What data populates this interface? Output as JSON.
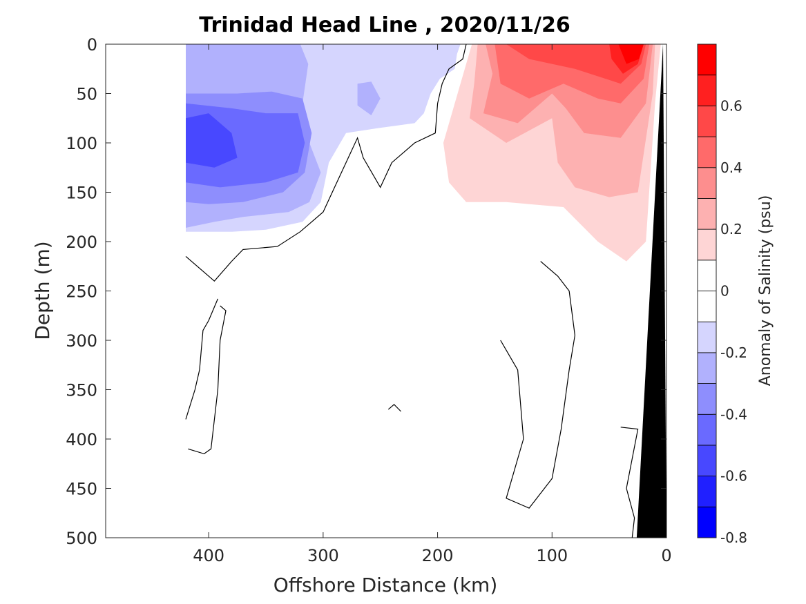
{
  "chart_data": {
    "type": "heatmap",
    "title": "Trinidad Head Line , 2020/11/26",
    "xlabel": "Offshore Distance (km)",
    "ylabel": "Depth (m)",
    "xlim": [
      490,
      0
    ],
    "ylim": [
      0,
      500
    ],
    "x_reversed": true,
    "y_reversed": true,
    "x_ticks": [
      400,
      300,
      200,
      100,
      0
    ],
    "x_tick_labels": [
      "400",
      "300",
      "200",
      "100",
      "0"
    ],
    "y_ticks": [
      0,
      50,
      100,
      150,
      200,
      250,
      300,
      350,
      400,
      450,
      500
    ],
    "y_tick_labels": [
      "0",
      "50",
      "100",
      "150",
      "200",
      "250",
      "300",
      "350",
      "400",
      "450",
      "500"
    ],
    "colorbar": {
      "label": "Anomaly of Salinity (psu)",
      "range": [
        -0.8,
        0.8
      ],
      "step": 0.1,
      "ticks": [
        -0.8,
        -0.6,
        -0.4,
        -0.2,
        0,
        0.2,
        0.4,
        0.6
      ],
      "tick_labels": [
        "-0.8",
        "-0.6",
        "-0.4",
        "-0.2",
        "0",
        "0.2",
        "0.4",
        "0.6"
      ],
      "colors": [
        "#0000ff",
        "#2020ff",
        "#4848ff",
        "#6a6aff",
        "#8e8efd",
        "#b1b1fd",
        "#d5d5fe",
        "#ffffff",
        "#ffffff",
        "#fed5d5",
        "#fdb1b1",
        "#fd8e8e",
        "#ff6a6a",
        "#ff4848",
        "#ff2020",
        "#ff0000"
      ]
    },
    "bottom_mask_color": "#000000",
    "bottom_mask": [
      [
        3,
        0
      ],
      [
        26,
        500
      ],
      [
        0,
        500
      ]
    ],
    "levels": [
      {
        "value": -0.1,
        "color": "#d5d5fe",
        "polygon": [
          [
            420,
            0
          ],
          [
            180,
            0
          ],
          [
            183,
            10
          ],
          [
            185,
            25
          ],
          [
            198,
            35
          ],
          [
            206,
            50
          ],
          [
            212,
            70
          ],
          [
            220,
            80
          ],
          [
            252,
            85
          ],
          [
            280,
            90
          ],
          [
            295,
            120
          ],
          [
            302,
            160
          ],
          [
            318,
            180
          ],
          [
            350,
            188
          ],
          [
            380,
            190
          ],
          [
            420,
            190
          ]
        ]
      },
      {
        "value": -0.2,
        "color": "#b1b1fd",
        "polygon": [
          [
            420,
            0
          ],
          [
            320,
            0
          ],
          [
            313,
            20
          ],
          [
            318,
            60
          ],
          [
            312,
            100
          ],
          [
            302,
            130
          ],
          [
            312,
            160
          ],
          [
            330,
            170
          ],
          [
            370,
            175
          ],
          [
            395,
            180
          ],
          [
            420,
            186
          ]
        ]
      },
      {
        "value": -0.2,
        "color": "#b1b1fd",
        "polygon": [
          [
            270,
            40
          ],
          [
            258,
            38
          ],
          [
            250,
            55
          ],
          [
            258,
            72
          ],
          [
            270,
            62
          ]
        ]
      },
      {
        "value": -0.3,
        "color": "#8e8efd",
        "polygon": [
          [
            420,
            50
          ],
          [
            375,
            50
          ],
          [
            345,
            48
          ],
          [
            318,
            55
          ],
          [
            310,
            90
          ],
          [
            316,
            130
          ],
          [
            335,
            150
          ],
          [
            370,
            160
          ],
          [
            400,
            162
          ],
          [
            420,
            160
          ]
        ]
      },
      {
        "value": -0.4,
        "color": "#6a6aff",
        "polygon": [
          [
            420,
            60
          ],
          [
            380,
            65
          ],
          [
            350,
            70
          ],
          [
            322,
            70
          ],
          [
            316,
            100
          ],
          [
            322,
            130
          ],
          [
            350,
            140
          ],
          [
            390,
            145
          ],
          [
            420,
            140
          ]
        ]
      },
      {
        "value": -0.5,
        "color": "#4848ff",
        "polygon": [
          [
            400,
            70
          ],
          [
            380,
            90
          ],
          [
            375,
            115
          ],
          [
            395,
            125
          ],
          [
            420,
            120
          ],
          [
            420,
            75
          ]
        ]
      },
      {
        "value": 0.1,
        "color": "#fed5d5",
        "polygon": [
          [
            170,
            0
          ],
          [
            5,
            0
          ],
          [
            10,
            60
          ],
          [
            18,
            200
          ],
          [
            35,
            220
          ],
          [
            60,
            200
          ],
          [
            90,
            165
          ],
          [
            140,
            160
          ],
          [
            175,
            160
          ],
          [
            190,
            140
          ],
          [
            195,
            100
          ],
          [
            180,
            40
          ]
        ]
      },
      {
        "value": 0.2,
        "color": "#fdb1b1",
        "polygon": [
          [
            165,
            0
          ],
          [
            10,
            0
          ],
          [
            12,
            50
          ],
          [
            25,
            150
          ],
          [
            50,
            155
          ],
          [
            80,
            145
          ],
          [
            95,
            120
          ],
          [
            100,
            75
          ],
          [
            140,
            100
          ],
          [
            172,
            75
          ],
          [
            168,
            40
          ]
        ]
      },
      {
        "value": 0.3,
        "color": "#fd8e8e",
        "polygon": [
          [
            158,
            0
          ],
          [
            12,
            0
          ],
          [
            18,
            60
          ],
          [
            40,
            95
          ],
          [
            72,
            90
          ],
          [
            88,
            65
          ],
          [
            100,
            50
          ],
          [
            130,
            80
          ],
          [
            160,
            70
          ],
          [
            152,
            30
          ]
        ]
      },
      {
        "value": 0.4,
        "color": "#ff6a6a",
        "polygon": [
          [
            150,
            0
          ],
          [
            15,
            0
          ],
          [
            20,
            35
          ],
          [
            40,
            60
          ],
          [
            60,
            55
          ],
          [
            90,
            40
          ],
          [
            120,
            55
          ],
          [
            145,
            40
          ]
        ]
      },
      {
        "value": 0.5,
        "color": "#ff4848",
        "polygon": [
          [
            140,
            0
          ],
          [
            18,
            0
          ],
          [
            22,
            20
          ],
          [
            40,
            40
          ],
          [
            80,
            25
          ],
          [
            120,
            15
          ]
        ]
      },
      {
        "value": 0.6,
        "color": "#ff2020",
        "polygon": [
          [
            50,
            0
          ],
          [
            20,
            0
          ],
          [
            25,
            20
          ],
          [
            38,
            30
          ],
          [
            48,
            15
          ]
        ]
      },
      {
        "value": 0.7,
        "color": "#ff0000",
        "polygon": [
          [
            42,
            0
          ],
          [
            20,
            0
          ],
          [
            24,
            15
          ],
          [
            35,
            20
          ]
        ]
      }
    ],
    "zero_contours": [
      [
        [
          175,
          0
        ],
        [
          178,
          15
        ],
        [
          190,
          25
        ],
        [
          196,
          40
        ],
        [
          200,
          60
        ],
        [
          202,
          90
        ],
        [
          220,
          100
        ],
        [
          240,
          120
        ],
        [
          250,
          145
        ],
        [
          265,
          115
        ],
        [
          270,
          95
        ],
        [
          280,
          120
        ],
        [
          290,
          145
        ],
        [
          300,
          170
        ],
        [
          320,
          190
        ],
        [
          340,
          205
        ],
        [
          370,
          208
        ],
        [
          380,
          220
        ],
        [
          395,
          240
        ],
        [
          420,
          215
        ]
      ],
      [
        [
          392,
          258
        ],
        [
          400,
          280
        ],
        [
          405,
          290
        ],
        [
          408,
          330
        ],
        [
          412,
          350
        ],
        [
          420,
          380
        ]
      ],
      [
        [
          390,
          265
        ],
        [
          385,
          270
        ],
        [
          390,
          300
        ],
        [
          392,
          350
        ],
        [
          398,
          410
        ],
        [
          404,
          415
        ],
        [
          418,
          410
        ]
      ],
      [
        [
          110,
          220
        ],
        [
          95,
          235
        ],
        [
          85,
          250
        ],
        [
          80,
          295
        ],
        [
          85,
          330
        ],
        [
          92,
          390
        ],
        [
          100,
          440
        ],
        [
          120,
          470
        ],
        [
          140,
          460
        ],
        [
          135,
          440
        ],
        [
          125,
          400
        ],
        [
          130,
          330
        ],
        [
          145,
          300
        ]
      ],
      [
        [
          40,
          388
        ],
        [
          25,
          390
        ],
        [
          35,
          450
        ],
        [
          28,
          480
        ],
        [
          30,
          500
        ]
      ],
      [
        [
          243,
          370
        ],
        [
          238,
          365
        ],
        [
          232,
          372
        ]
      ]
    ]
  }
}
